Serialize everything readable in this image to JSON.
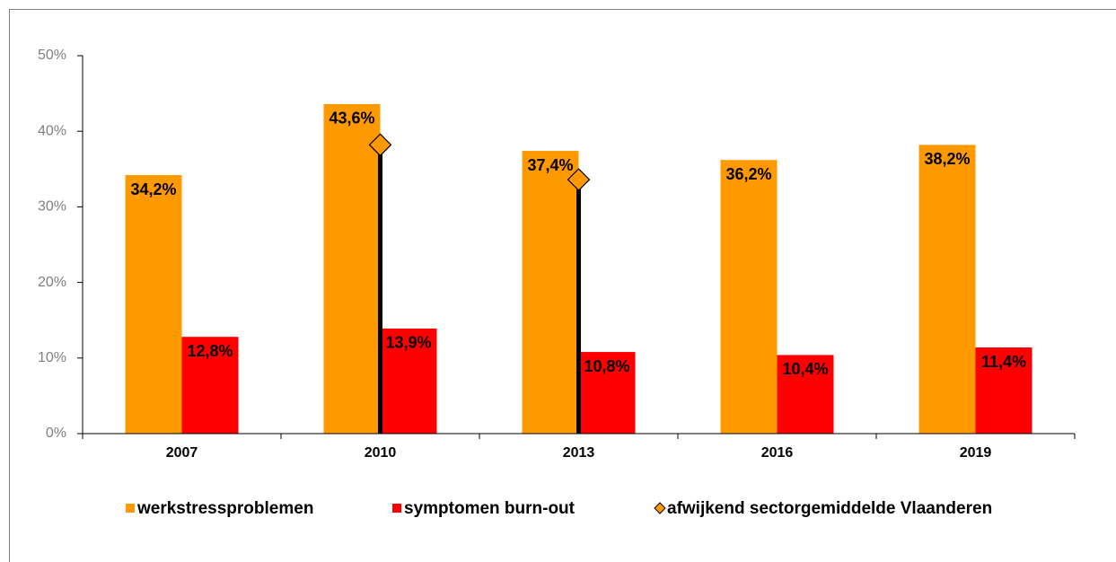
{
  "chart_data": {
    "type": "bar",
    "categories": [
      "2007",
      "2010",
      "2013",
      "2016",
      "2019"
    ],
    "series": [
      {
        "name": "werkstressproblemen",
        "color": "#FF9900",
        "values": [
          34.2,
          43.6,
          37.4,
          36.2,
          38.2
        ],
        "value_labels": [
          "34,2%",
          "43,6%",
          "37,4%",
          "36,2%",
          "38,2%"
        ]
      },
      {
        "name": "symptomen burn-out",
        "color": "#FF0000",
        "values": [
          12.8,
          13.9,
          10.8,
          10.4,
          11.4
        ],
        "value_labels": [
          "12,8%",
          "13,9%",
          "10,8%",
          "10,4%",
          "11,4%"
        ]
      },
      {
        "name": "afwijkend sectorgemiddelde Vlaanderen",
        "color": "#FF9900",
        "marker": "diamond",
        "values": [
          null,
          38.2,
          33.6,
          null,
          null
        ]
      }
    ],
    "ylim": [
      0,
      50
    ],
    "yticks": [
      {
        "value": 0,
        "label": "0%"
      },
      {
        "value": 10,
        "label": "10%"
      },
      {
        "value": 20,
        "label": "20%"
      },
      {
        "value": 30,
        "label": "30%"
      },
      {
        "value": 40,
        "label": "40%"
      },
      {
        "value": 50,
        "label": "50%"
      }
    ],
    "legend": "bottom"
  }
}
